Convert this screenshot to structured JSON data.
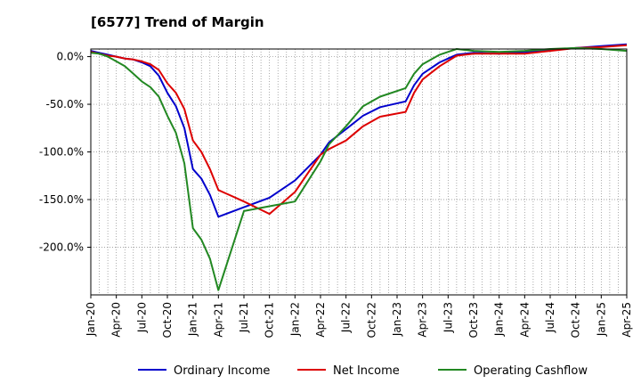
{
  "chart_data": {
    "type": "line",
    "title": "[6577]  Trend of Margin",
    "xlabel": "",
    "ylabel": "",
    "x_tick_labels": [
      "Jan-20",
      "Apr-20",
      "Jul-20",
      "Oct-20",
      "Jan-21",
      "Apr-21",
      "Jul-21",
      "Oct-21",
      "Jan-22",
      "Apr-22",
      "Jul-22",
      "Oct-22",
      "Jan-23",
      "Apr-23",
      "Jul-23",
      "Oct-23",
      "Jan-24",
      "Apr-24",
      "Jul-24",
      "Oct-24",
      "Jan-25",
      "Apr-25"
    ],
    "y_ticks": [
      0,
      -50,
      -100,
      -150,
      -200
    ],
    "y_tick_labels": [
      "0.0%",
      "-50.0%",
      "-100.0%",
      "-150.0%",
      "-200.0%"
    ],
    "ylim": [
      -250,
      8
    ],
    "xlim_months": [
      0,
      63
    ],
    "grid": true,
    "legend_position": "bottom",
    "series": [
      {
        "name": "Ordinary Income",
        "color": "#0000cc",
        "points": [
          [
            0,
            6
          ],
          [
            1,
            4
          ],
          [
            2,
            2
          ],
          [
            3,
            0
          ],
          [
            4,
            -2
          ],
          [
            5,
            -3
          ],
          [
            6,
            -6
          ],
          [
            7,
            -10
          ],
          [
            8,
            -20
          ],
          [
            9,
            -38
          ],
          [
            10,
            -52
          ],
          [
            11,
            -75
          ],
          [
            12,
            -118
          ],
          [
            13,
            -128
          ],
          [
            14,
            -145
          ],
          [
            15,
            -168
          ],
          [
            18,
            -158
          ],
          [
            21,
            -148
          ],
          [
            24,
            -130
          ],
          [
            27,
            -103
          ],
          [
            28,
            -90
          ],
          [
            30,
            -76
          ],
          [
            32,
            -62
          ],
          [
            34,
            -53
          ],
          [
            37,
            -47
          ],
          [
            38,
            -30
          ],
          [
            39,
            -18
          ],
          [
            41,
            -6
          ],
          [
            43,
            2
          ],
          [
            45,
            4
          ],
          [
            48,
            3
          ],
          [
            51,
            5
          ],
          [
            54,
            7
          ],
          [
            57,
            9
          ],
          [
            60,
            11
          ],
          [
            63,
            13
          ]
        ]
      },
      {
        "name": "Net Income",
        "color": "#dd0000",
        "points": [
          [
            0,
            5
          ],
          [
            1,
            3
          ],
          [
            2,
            1
          ],
          [
            3,
            0
          ],
          [
            4,
            -2
          ],
          [
            5,
            -3
          ],
          [
            6,
            -5
          ],
          [
            7,
            -8
          ],
          [
            8,
            -14
          ],
          [
            9,
            -28
          ],
          [
            10,
            -38
          ],
          [
            11,
            -55
          ],
          [
            12,
            -88
          ],
          [
            13,
            -100
          ],
          [
            14,
            -118
          ],
          [
            15,
            -140
          ],
          [
            18,
            -152
          ],
          [
            21,
            -165
          ],
          [
            24,
            -142
          ],
          [
            27,
            -103
          ],
          [
            28,
            -97
          ],
          [
            30,
            -88
          ],
          [
            32,
            -73
          ],
          [
            34,
            -63
          ],
          [
            37,
            -58
          ],
          [
            38,
            -38
          ],
          [
            39,
            -24
          ],
          [
            41,
            -10
          ],
          [
            43,
            1
          ],
          [
            45,
            3
          ],
          [
            48,
            3
          ],
          [
            51,
            3
          ],
          [
            54,
            6
          ],
          [
            57,
            9
          ],
          [
            60,
            10
          ],
          [
            63,
            12
          ]
        ]
      },
      {
        "name": "Operating Cashflow",
        "color": "#228822",
        "points": [
          [
            0,
            4
          ],
          [
            1,
            3
          ],
          [
            2,
            0
          ],
          [
            3,
            -5
          ],
          [
            4,
            -10
          ],
          [
            5,
            -18
          ],
          [
            6,
            -26
          ],
          [
            7,
            -32
          ],
          [
            8,
            -42
          ],
          [
            9,
            -62
          ],
          [
            10,
            -80
          ],
          [
            11,
            -112
          ],
          [
            12,
            -180
          ],
          [
            13,
            -192
          ],
          [
            14,
            -212
          ],
          [
            15,
            -245
          ],
          [
            18,
            -162
          ],
          [
            21,
            -157
          ],
          [
            24,
            -152
          ],
          [
            27,
            -110
          ],
          [
            28,
            -92
          ],
          [
            30,
            -73
          ],
          [
            32,
            -52
          ],
          [
            34,
            -42
          ],
          [
            37,
            -33
          ],
          [
            38,
            -18
          ],
          [
            39,
            -8
          ],
          [
            41,
            2
          ],
          [
            43,
            8
          ],
          [
            45,
            6
          ],
          [
            48,
            5
          ],
          [
            51,
            6
          ],
          [
            54,
            8
          ],
          [
            57,
            9
          ],
          [
            60,
            8
          ],
          [
            63,
            6
          ]
        ]
      }
    ]
  }
}
